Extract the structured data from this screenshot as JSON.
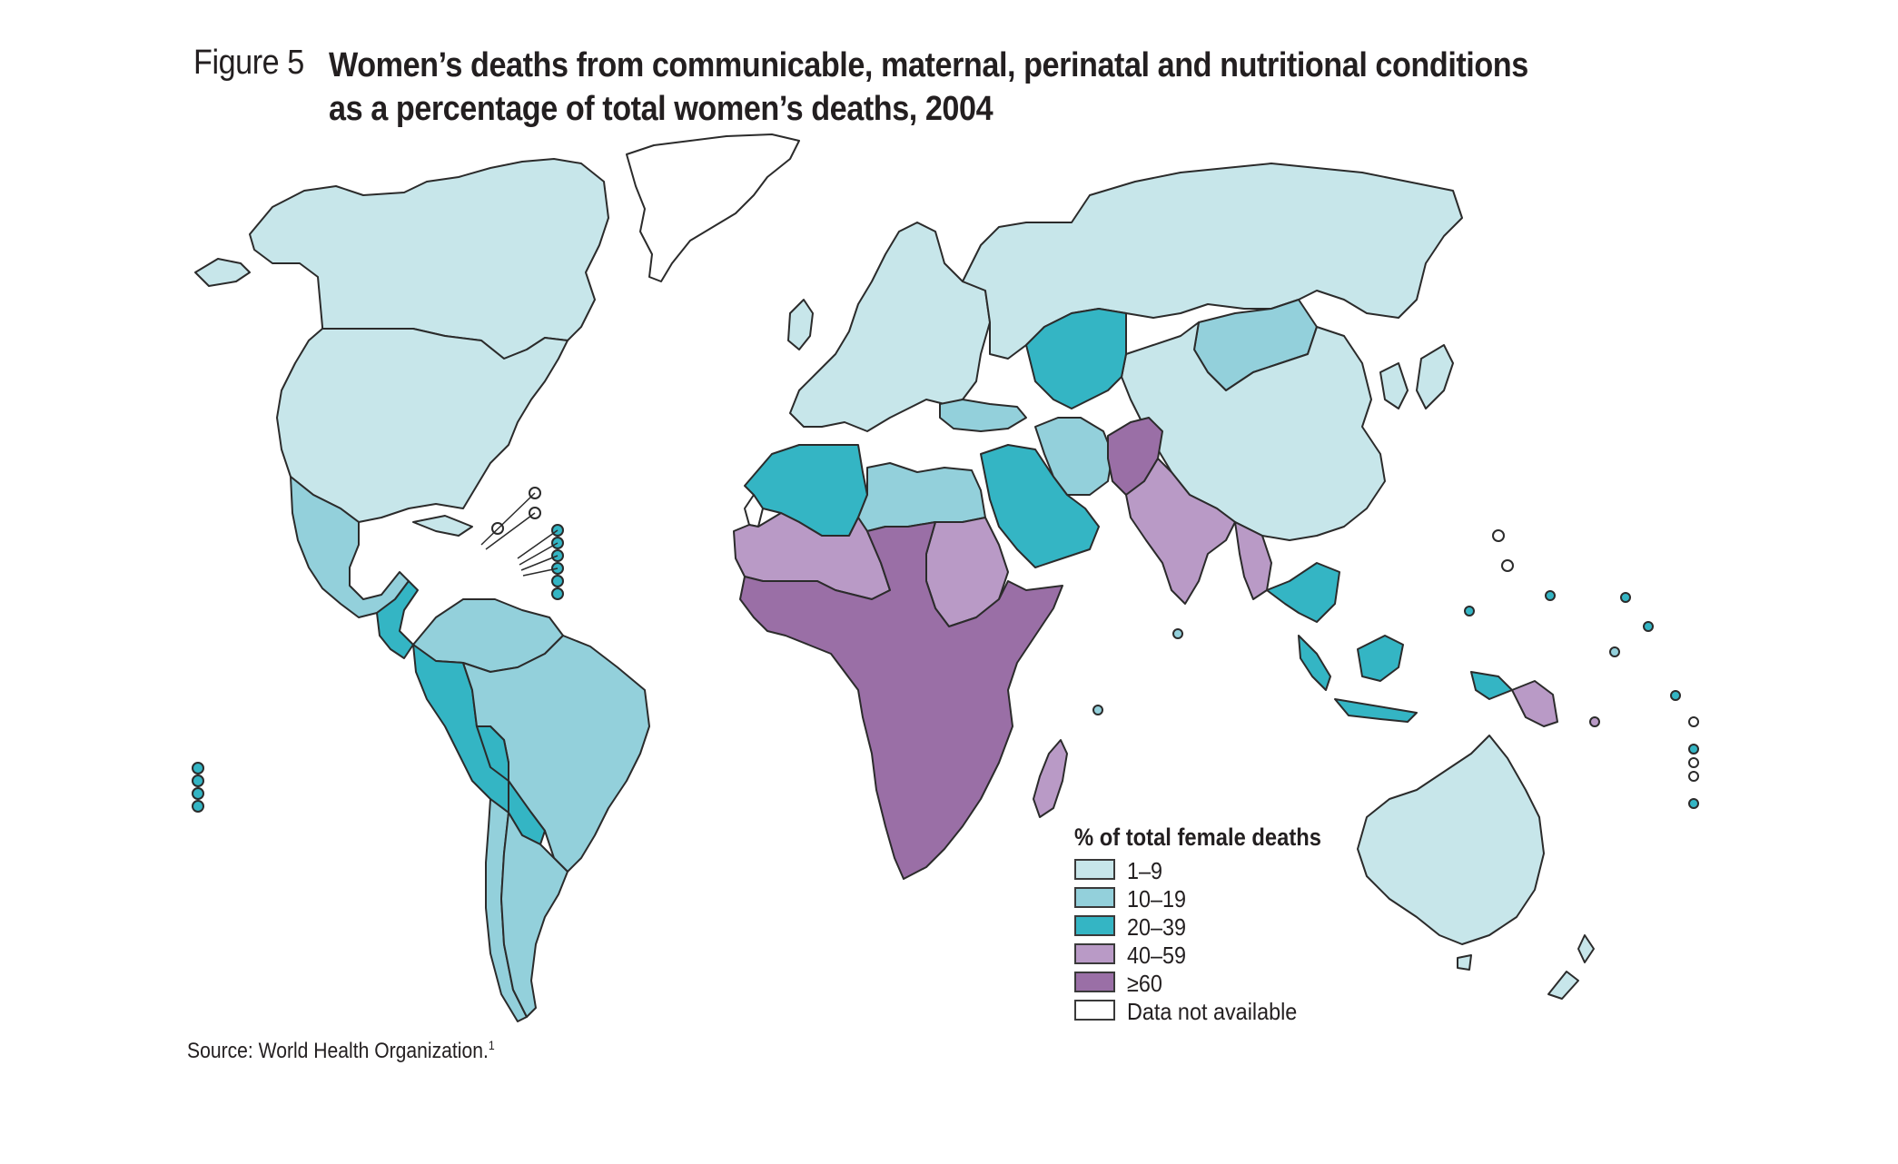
{
  "figure": {
    "label": "Figure 5",
    "title_line1": "Women’s deaths from communicable, maternal, perinatal and nutritional conditions",
    "title_line2": "as a percentage of total women’s deaths, 2004"
  },
  "legend": {
    "title": "% of total female deaths",
    "items": [
      {
        "label": "1–9",
        "color": "#c7e6ea"
      },
      {
        "label": "10–19",
        "color": "#93d0db"
      },
      {
        "label": "20–39",
        "color": "#34b5c4"
      },
      {
        "label": "40–59",
        "color": "#b99ac6"
      },
      {
        "label": "≥60",
        "color": "#9a6fa6"
      },
      {
        "label": "Data not available",
        "color": "#ffffff"
      }
    ]
  },
  "source": {
    "text": "Source: World Health Organization.",
    "note": "1"
  },
  "regions": [
    {
      "id": "canada-alaska",
      "category": "1–9"
    },
    {
      "id": "usa",
      "category": "1–9"
    },
    {
      "id": "greenland",
      "category": "Data not available"
    },
    {
      "id": "mexico",
      "category": "10–19"
    },
    {
      "id": "central-america",
      "category": "20–39"
    },
    {
      "id": "south-america-north",
      "category": "10–19"
    },
    {
      "id": "andean-west",
      "category": "20–39"
    },
    {
      "id": "brazil",
      "category": "10–19"
    },
    {
      "id": "bolivia",
      "category": "20–39"
    },
    {
      "id": "chile",
      "category": "10–19"
    },
    {
      "id": "argentina",
      "category": "10–19"
    },
    {
      "id": "europe",
      "category": "1–9"
    },
    {
      "id": "russia",
      "category": "1–9"
    },
    {
      "id": "mongolia",
      "category": "10–19"
    },
    {
      "id": "china",
      "category": "1–9"
    },
    {
      "id": "central-asia",
      "category": "20–39"
    },
    {
      "id": "turkey",
      "category": "10–19"
    },
    {
      "id": "iran",
      "category": "10–19"
    },
    {
      "id": "middle-east",
      "category": "20–39"
    },
    {
      "id": "afghanistan-pakistan",
      "category": "≥60"
    },
    {
      "id": "india",
      "category": "40–59"
    },
    {
      "id": "southeast-asia",
      "category": "20–39"
    },
    {
      "id": "myanmar",
      "category": "40–59"
    },
    {
      "id": "korea-japan",
      "category": "1–9"
    },
    {
      "id": "indonesia",
      "category": "20–39"
    },
    {
      "id": "png",
      "category": "40–59"
    },
    {
      "id": "australia",
      "category": "1–9"
    },
    {
      "id": "new-zealand",
      "category": "1–9"
    },
    {
      "id": "north-africa-west",
      "category": "20–39"
    },
    {
      "id": "libya-egypt",
      "category": "10–19"
    },
    {
      "id": "west-africa-sahel",
      "category": "40–59"
    },
    {
      "id": "sudan",
      "category": "40–59"
    },
    {
      "id": "sub-saharan-africa",
      "category": "≥60"
    },
    {
      "id": "madagascar",
      "category": "40–59"
    },
    {
      "id": "western-sahara",
      "category": "Data not available"
    }
  ]
}
